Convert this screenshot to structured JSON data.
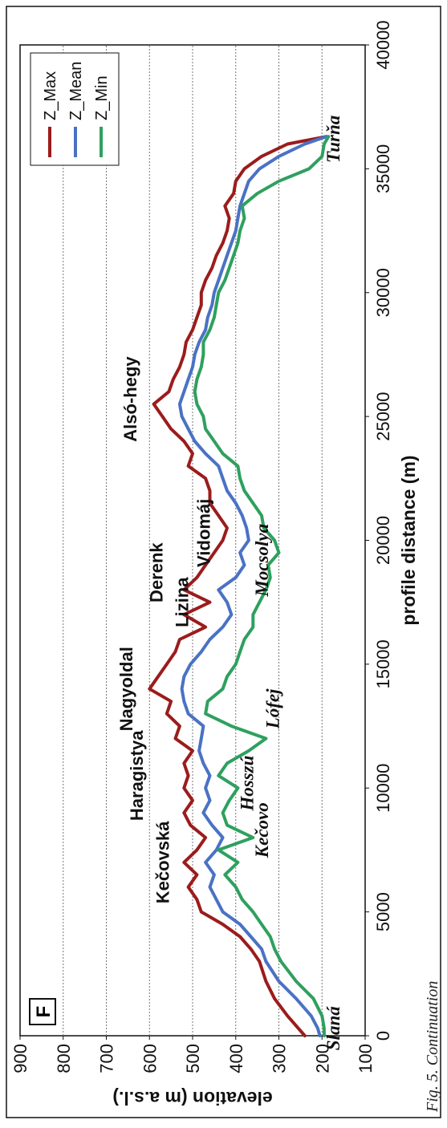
{
  "panel_label": "F",
  "caption": "Fig. 5. Continuation",
  "colors": {
    "Z_Max": "#9b1c1c",
    "Z_Mean": "#4a72c4",
    "Z_Min": "#2fa05e"
  },
  "chart_data": {
    "type": "line",
    "title": "",
    "xlabel": "profile distance (m)",
    "ylabel": "elevation (m a.s.l.)",
    "xlim": [
      0,
      40000
    ],
    "ylim": [
      100,
      900
    ],
    "xticks": [
      0,
      5000,
      10000,
      15000,
      20000,
      25000,
      30000,
      35000,
      40000
    ],
    "yticks": [
      100,
      200,
      300,
      400,
      500,
      600,
      700,
      800,
      900
    ],
    "grid": "horizontal-dashed",
    "legend": "top-right",
    "series": [
      {
        "name": "Z_Max",
        "x": [
          0,
          300,
          800,
          1500,
          2200,
          3000,
          3500,
          4000,
          4500,
          5000,
          5500,
          6000,
          6500,
          7000,
          7500,
          8000,
          8500,
          9000,
          9500,
          10000,
          10500,
          11000,
          11500,
          12000,
          12500,
          13000,
          13500,
          14000,
          14500,
          15000,
          15500,
          16000,
          16500,
          17000,
          17500,
          18000,
          18500,
          19000,
          19500,
          20000,
          20500,
          21000,
          21500,
          22000,
          22500,
          23000,
          23500,
          24000,
          24500,
          25000,
          25500,
          26000,
          26500,
          27000,
          27500,
          28000,
          28500,
          29000,
          29500,
          30000,
          30500,
          31000,
          31500,
          32000,
          32500,
          33000,
          33500,
          34000,
          34500,
          35000,
          35500,
          36000,
          36300
        ],
        "y": [
          240,
          255,
          280,
          310,
          330,
          345,
          365,
          390,
          430,
          480,
          490,
          510,
          490,
          520,
          490,
          470,
          505,
          520,
          500,
          520,
          510,
          520,
          500,
          540,
          530,
          560,
          550,
          600,
          580,
          560,
          540,
          530,
          470,
          520,
          460,
          520,
          490,
          470,
          450,
          430,
          420,
          440,
          460,
          460,
          470,
          510,
          500,
          520,
          550,
          570,
          590,
          555,
          545,
          530,
          520,
          515,
          500,
          490,
          480,
          480,
          470,
          455,
          445,
          430,
          420,
          415,
          425,
          405,
          400,
          380,
          340,
          280,
          190
        ]
      },
      {
        "name": "Z_Mean",
        "x": [
          0,
          300,
          800,
          1500,
          2200,
          3000,
          3500,
          4000,
          4500,
          5000,
          5500,
          6000,
          6500,
          7000,
          7500,
          8000,
          8500,
          9000,
          9500,
          10000,
          10500,
          11000,
          11500,
          12000,
          12500,
          13000,
          13500,
          14000,
          14500,
          15000,
          15500,
          16000,
          16500,
          17000,
          17500,
          18000,
          18500,
          19000,
          19500,
          20000,
          20500,
          21000,
          21500,
          22000,
          22500,
          23000,
          23500,
          24000,
          24500,
          25000,
          25500,
          26000,
          26500,
          27000,
          27500,
          28000,
          28500,
          29000,
          29500,
          30000,
          30500,
          31000,
          31500,
          32000,
          32500,
          33000,
          33500,
          34000,
          34500,
          35000,
          35500,
          36000,
          36300
        ],
        "y": [
          205,
          210,
          225,
          260,
          300,
          330,
          340,
          365,
          390,
          430,
          445,
          460,
          450,
          470,
          445,
          430,
          455,
          475,
          460,
          470,
          460,
          475,
          485,
          480,
          475,
          510,
          520,
          525,
          520,
          505,
          480,
          460,
          430,
          410,
          420,
          440,
          400,
          380,
          390,
          370,
          375,
          385,
          400,
          420,
          430,
          440,
          470,
          495,
          510,
          525,
          530,
          520,
          510,
          500,
          495,
          485,
          470,
          465,
          455,
          450,
          440,
          430,
          420,
          410,
          400,
          395,
          390,
          380,
          370,
          345,
          300,
          240,
          190
        ]
      },
      {
        "name": "Z_Min",
        "x": [
          0,
          300,
          800,
          1500,
          2200,
          3000,
          3500,
          4000,
          4500,
          5000,
          5500,
          6000,
          6500,
          7000,
          7500,
          8000,
          8500,
          9000,
          9500,
          10000,
          10500,
          11000,
          11500,
          12000,
          12500,
          13000,
          13500,
          14000,
          14500,
          15000,
          15500,
          16000,
          16500,
          17000,
          17500,
          18000,
          18500,
          19000,
          19500,
          20000,
          20500,
          21000,
          21500,
          22000,
          22500,
          23000,
          23500,
          24000,
          24500,
          25000,
          25500,
          26000,
          26500,
          27000,
          27500,
          28000,
          28500,
          29000,
          29500,
          30000,
          30500,
          31000,
          31500,
          32000,
          32500,
          33000,
          33500,
          34000,
          34500,
          35000,
          35500,
          36000,
          36300
        ],
        "y": [
          195,
          195,
          200,
          220,
          260,
          295,
          310,
          320,
          340,
          360,
          385,
          400,
          425,
          395,
          440,
          360,
          420,
          430,
          415,
          395,
          440,
          420,
          370,
          330,
          410,
          470,
          465,
          430,
          420,
          400,
          390,
          380,
          360,
          360,
          345,
          330,
          320,
          325,
          300,
          310,
          335,
          340,
          360,
          380,
          390,
          395,
          430,
          450,
          470,
          475,
          490,
          495,
          490,
          480,
          475,
          475,
          460,
          450,
          445,
          440,
          425,
          415,
          405,
          395,
          390,
          380,
          385,
          350,
          300,
          230,
          200,
          195,
          185
        ]
      }
    ],
    "annotations": [
      {
        "text": "Slaná",
        "x": 300,
        "y": 160,
        "style": "italic"
      },
      {
        "text": "Kečovská",
        "x": 7000,
        "y": 555,
        "style": "bold"
      },
      {
        "text": "Haragistya",
        "x": 10500,
        "y": 615,
        "style": "bold"
      },
      {
        "text": "Kečovo",
        "x": 8300,
        "y": 325,
        "style": "italic"
      },
      {
        "text": "Hosszú",
        "x": 10200,
        "y": 360,
        "style": "italic"
      },
      {
        "text": "Nagyoldal",
        "x": 14000,
        "y": 640,
        "style": "bold"
      },
      {
        "text": "Lófej",
        "x": 13200,
        "y": 300,
        "style": "italic"
      },
      {
        "text": "Lizina",
        "x": 17500,
        "y": 510,
        "style": "bold"
      },
      {
        "text": "Derenk",
        "x": 18700,
        "y": 570,
        "style": "bold"
      },
      {
        "text": "Vidomáj",
        "x": 20300,
        "y": 460,
        "style": "bold"
      },
      {
        "text": "Mocsolya",
        "x": 19200,
        "y": 325,
        "style": "italic"
      },
      {
        "text": "Alsó-hegy",
        "x": 25700,
        "y": 630,
        "style": "bold"
      },
      {
        "text": "Turňa",
        "x": 36200,
        "y": 160,
        "style": "italic"
      }
    ]
  }
}
